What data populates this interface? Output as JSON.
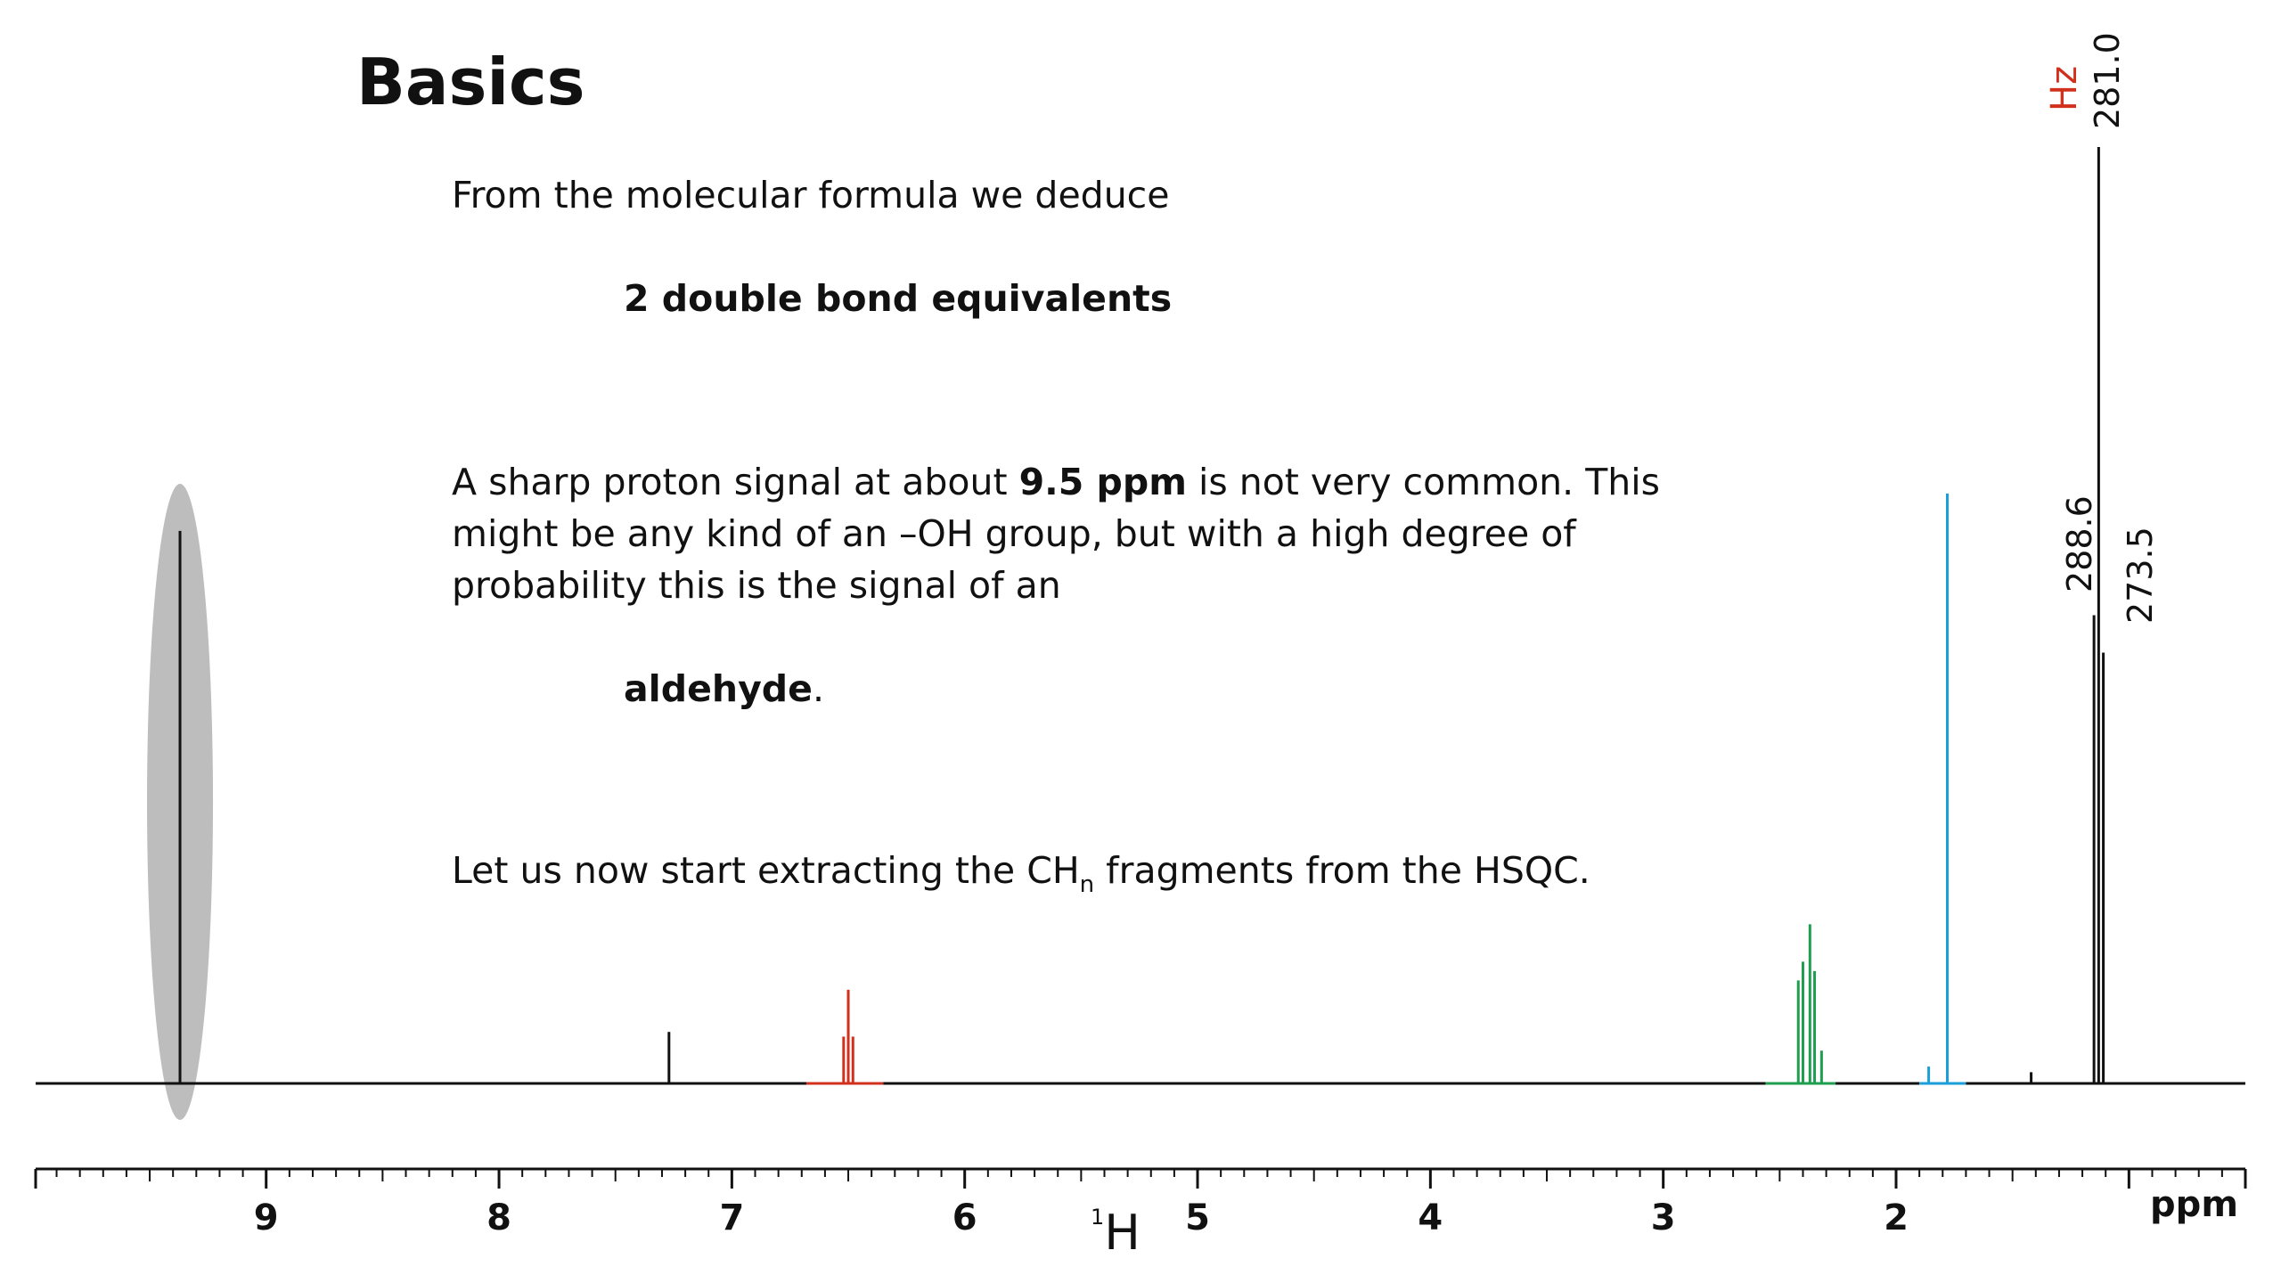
{
  "slide": {
    "title": "Basics",
    "intro": "From the molecular formula we deduce",
    "dbe": "2 double bond equivalents",
    "para_1a": "A sharp proton signal at about ",
    "para_1b": "9.5 ppm",
    "para_1c": " is not very common. This",
    "para_2": "might be any kind of an –OH group, but with a high degree of",
    "para_3": "probability this is the signal of an",
    "conclusion_word": "aldehyde",
    "conclusion_dot": ".",
    "next_a": "Let us now start extracting the CH",
    "next_sub": "n",
    "next_b": " fragments from the HSQC."
  },
  "chart_data": {
    "type": "line",
    "title": "",
    "xlabel_nucleus_mass": "1",
    "xlabel_nucleus": "H",
    "unit": "ppm",
    "x_reversed": true,
    "xlim": [
      9.99,
      0.5
    ],
    "major_ticks": [
      9,
      8,
      7,
      6,
      5,
      4,
      3,
      2
    ],
    "minor_tick_step": 0.1,
    "ylim": [
      0,
      1.0
    ],
    "highlight": {
      "shape": "ellipse",
      "center_ppm": 9.37,
      "color": "#bdbdbd"
    },
    "colors": {
      "baseline": "#111111",
      "red": "#d1301c",
      "green": "#1f9e4f",
      "blue": "#1a9fd9"
    },
    "peaks": [
      {
        "ppm": 9.37,
        "height": 0.59,
        "color": "baseline"
      },
      {
        "ppm": 7.27,
        "height": 0.055,
        "color": "baseline"
      },
      {
        "ppm": 6.52,
        "height": 0.05,
        "color": "red"
      },
      {
        "ppm": 6.5,
        "height": 0.1,
        "color": "red"
      },
      {
        "ppm": 6.48,
        "height": 0.05,
        "color": "red"
      },
      {
        "ppm": 2.42,
        "height": 0.11,
        "color": "green"
      },
      {
        "ppm": 2.4,
        "height": 0.13,
        "color": "green"
      },
      {
        "ppm": 2.37,
        "height": 0.17,
        "color": "green"
      },
      {
        "ppm": 2.35,
        "height": 0.12,
        "color": "green"
      },
      {
        "ppm": 2.32,
        "height": 0.035,
        "color": "green"
      },
      {
        "ppm": 1.86,
        "height": 0.018,
        "color": "blue"
      },
      {
        "ppm": 1.78,
        "height": 0.63,
        "color": "blue"
      },
      {
        "ppm": 1.42,
        "height": 0.012,
        "color": "baseline"
      },
      {
        "ppm": 1.15,
        "height": 0.5,
        "color": "baseline",
        "label": "288.6"
      },
      {
        "ppm": 1.13,
        "height": 1.0,
        "color": "baseline",
        "label": "281.0"
      },
      {
        "ppm": 1.11,
        "height": 0.46,
        "color": "baseline",
        "label": "273.5"
      }
    ],
    "peak_label_unit": "Hz"
  }
}
